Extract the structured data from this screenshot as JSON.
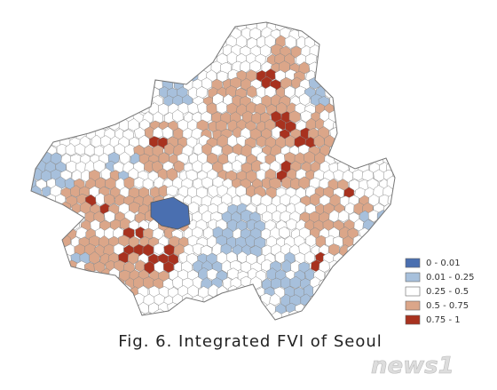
{
  "legend": {
    "items": [
      {
        "label": "0 - 0.01",
        "color": "#4a6fb0"
      },
      {
        "label": "0.01 - 0.25",
        "color": "#a7c0dc"
      },
      {
        "label": "0.25 - 0.5",
        "color": "#ffffff"
      },
      {
        "label": "0.5 - 0.75",
        "color": "#dba689"
      },
      {
        "label": "0.75 - 1",
        "color": "#a8321f"
      }
    ]
  },
  "caption": "Fig. 6. Integrated FVI of Seoul",
  "watermark": "news1"
}
